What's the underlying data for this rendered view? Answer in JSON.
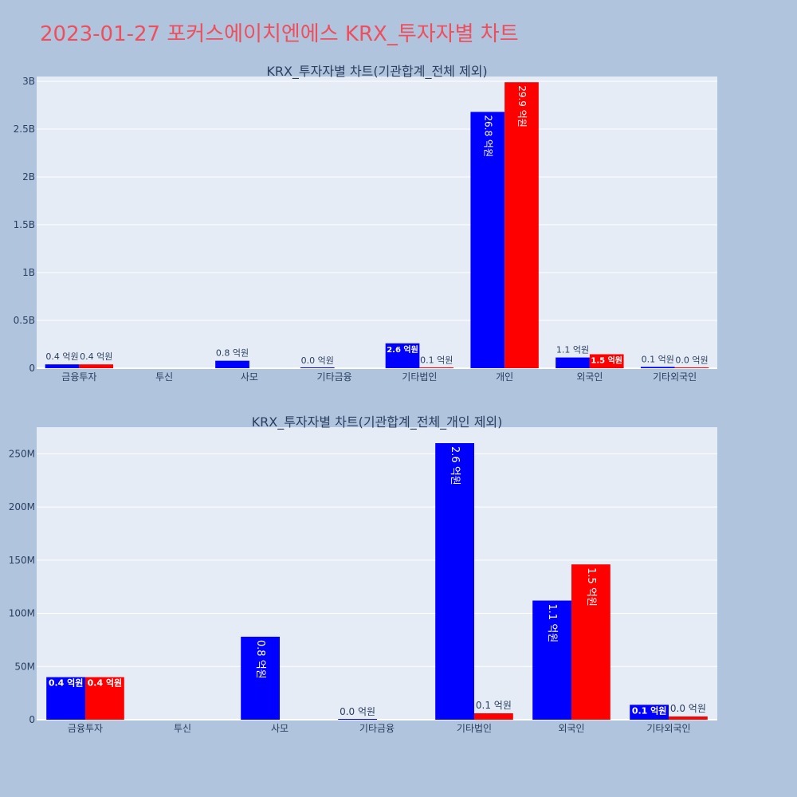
{
  "page_title": "2023-01-27 포커스에이치엔에스 KRX_투자자별 차트",
  "colors": {
    "page_bg": "#b0c4de",
    "plot_bg": "#e5ecf6",
    "grid": "#ffffff",
    "series_a": "#0000ff",
    "series_b": "#ff0000",
    "title": "#ef4f5c",
    "text": "#2a3f5f"
  },
  "chart_data": [
    {
      "type": "bar",
      "title": "KRX_투자자별 차트(기관합계_전체 제외)",
      "categories": [
        "금융투자",
        "투신",
        "사모",
        "기타금융",
        "기타법인",
        "개인",
        "외국인",
        "기타외국인"
      ],
      "ylim": [
        0,
        3050000000
      ],
      "y_ticks": [
        0,
        500000000,
        1000000000,
        1500000000,
        2000000000,
        2500000000,
        3000000000
      ],
      "y_tick_labels": [
        "0",
        "0.5B",
        "1B",
        "1.5B",
        "2B",
        "2.5B",
        "3B"
      ],
      "grid": true,
      "series": [
        {
          "values": [
            40000000,
            null,
            78000000,
            0,
            260000000,
            2680000000,
            112000000,
            14000000
          ],
          "labels": [
            "0.4 억원",
            "",
            "0.8 억원",
            "0.0 억원",
            "2.6 억원",
            "26.8 억원",
            "1.1 억원",
            "0.1 억원"
          ]
        },
        {
          "values": [
            40000000,
            null,
            null,
            null,
            6000000,
            2990000000,
            146000000,
            3000000
          ],
          "labels": [
            "0.4 억원",
            "",
            "",
            "",
            "0.1 억원",
            "29.9 억원",
            "1.5 억원",
            "0.0 억원"
          ]
        }
      ]
    },
    {
      "type": "bar",
      "title": "KRX_투자자별 차트(기관합계_전체_개인 제외)",
      "categories": [
        "금융투자",
        "투신",
        "사모",
        "기타금융",
        "기타법인",
        "외국인",
        "기타외국인"
      ],
      "ylim": [
        0,
        275000000
      ],
      "y_ticks": [
        0,
        50000000,
        100000000,
        150000000,
        200000000,
        250000000
      ],
      "y_tick_labels": [
        "0",
        "50M",
        "100M",
        "150M",
        "200M",
        "250M"
      ],
      "grid": true,
      "series": [
        {
          "values": [
            40000000,
            null,
            78000000,
            0,
            260000000,
            112000000,
            14000000
          ],
          "labels": [
            "0.4 억원",
            "",
            "0.8 억원",
            "0.0 억원",
            "2.6 억원",
            "1.1 억원",
            "0.1 억원"
          ]
        },
        {
          "values": [
            40000000,
            null,
            null,
            null,
            6000000,
            146000000,
            3000000
          ],
          "labels": [
            "0.4 억원",
            "",
            "",
            "",
            "0.1 억원",
            "1.5 억원",
            "0.0 억원"
          ]
        }
      ]
    }
  ]
}
